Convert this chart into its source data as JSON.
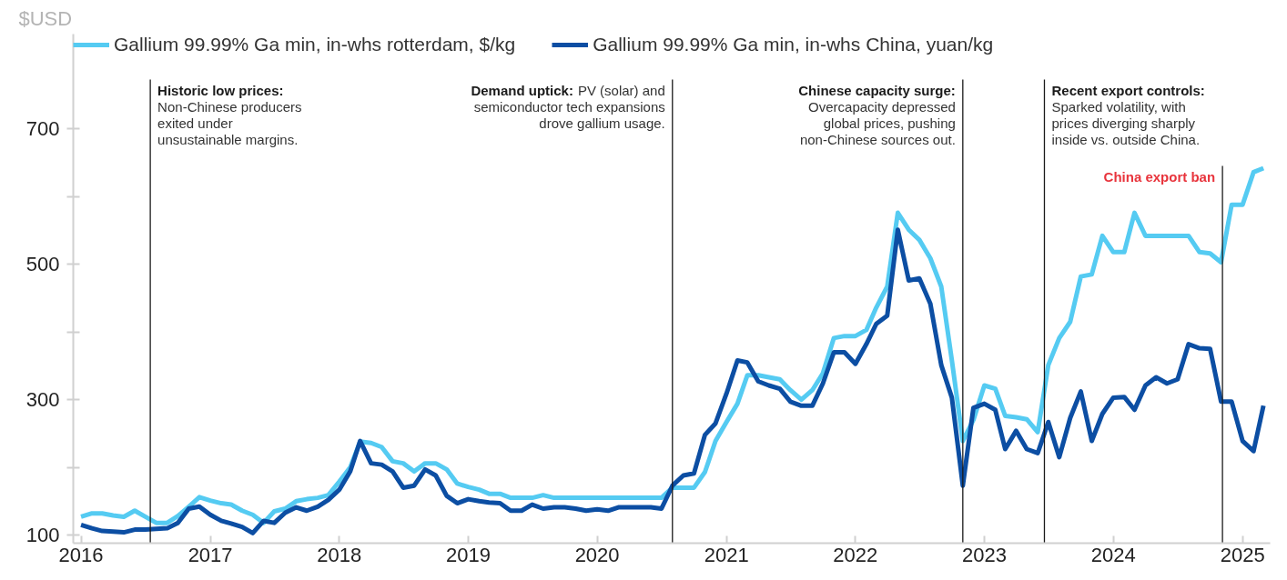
{
  "chart_data": {
    "type": "line",
    "ylabel": "$USD",
    "legend": "top",
    "line_style": "solid",
    "x": [
      "2016-01",
      "2016-02",
      "2016-03",
      "2016-04",
      "2016-05",
      "2016-06",
      "2016-07",
      "2016-08",
      "2016-09",
      "2016-10",
      "2016-11",
      "2016-12",
      "2017-01",
      "2017-02",
      "2017-03",
      "2017-04",
      "2017-05",
      "2017-06",
      "2017-07",
      "2017-08",
      "2017-09",
      "2017-10",
      "2017-11",
      "2017-12",
      "2018-01",
      "2018-02",
      "2018-03",
      "2018-04",
      "2018-05",
      "2018-06",
      "2018-07",
      "2018-08",
      "2018-09",
      "2018-10",
      "2018-11",
      "2018-12",
      "2019-01",
      "2019-02",
      "2019-03",
      "2019-04",
      "2019-05",
      "2019-06",
      "2019-07",
      "2019-08",
      "2019-09",
      "2019-10",
      "2019-11",
      "2019-12",
      "2020-01",
      "2020-02",
      "2020-03",
      "2020-04",
      "2020-05",
      "2020-06",
      "2020-07",
      "2020-08",
      "2020-09",
      "2020-10",
      "2020-11",
      "2020-12",
      "2021-01",
      "2021-02",
      "2021-03",
      "2021-04",
      "2021-05",
      "2021-06",
      "2021-07",
      "2021-08",
      "2021-09",
      "2021-10",
      "2021-11",
      "2021-12",
      "2022-01",
      "2022-02",
      "2022-03",
      "2022-04",
      "2022-05",
      "2022-06",
      "2022-07",
      "2022-08",
      "2022-09",
      "2022-10",
      "2022-11",
      "2022-12",
      "2023-01",
      "2023-02",
      "2023-03",
      "2023-04",
      "2023-05",
      "2023-06",
      "2023-07",
      "2023-08",
      "2023-09",
      "2023-10",
      "2023-11",
      "2023-12",
      "2024-01",
      "2024-02",
      "2024-03",
      "2024-04",
      "2024-05",
      "2024-06",
      "2024-07",
      "2024-08",
      "2024-09",
      "2024-10",
      "2024-11",
      "2024-12",
      "2025-01",
      "2025-02",
      "2025-03"
    ],
    "series": [
      {
        "name": "Gallium 99.99% Ga min, in-whs rotterdam, $/kg",
        "color": "#55cbf2",
        "values": [
          127,
          132,
          132,
          129,
          127,
          136,
          127,
          118,
          118,
          128,
          142,
          156,
          151,
          147,
          145,
          136,
          130,
          118,
          135,
          139,
          150,
          153,
          155,
          159,
          179,
          200,
          238,
          236,
          230,
          209,
          206,
          194,
          206,
          206,
          197,
          176,
          171,
          167,
          161,
          161,
          155,
          155,
          155,
          159,
          155,
          155,
          155,
          155,
          155,
          155,
          155,
          155,
          155,
          155,
          155,
          170,
          170,
          170,
          193,
          239,
          267,
          294,
          336,
          336,
          333,
          330,
          314,
          300,
          314,
          339,
          391,
          394,
          394,
          403,
          436,
          467,
          576,
          551,
          536,
          509,
          467,
          358,
          239,
          270,
          321,
          316,
          276,
          274,
          271,
          252,
          351,
          391,
          415,
          482,
          485,
          542,
          518,
          518,
          576,
          542,
          542,
          542,
          542,
          542,
          518,
          516,
          503,
          588,
          588,
          636,
          642
        ]
      },
      {
        "name": "Gallium 99.99% Ga min, in-whs China, yuan/kg",
        "color": "#0c4ea3",
        "values": [
          115,
          110,
          106,
          105,
          104,
          108,
          108,
          109,
          110,
          118,
          139,
          142,
          130,
          121,
          117,
          112,
          103,
          121,
          118,
          133,
          141,
          136,
          142,
          152,
          167,
          194,
          239,
          206,
          204,
          194,
          170,
          173,
          197,
          188,
          158,
          147,
          153,
          150,
          148,
          147,
          136,
          136,
          145,
          139,
          141,
          141,
          139,
          136,
          138,
          136,
          141,
          141,
          141,
          141,
          139,
          173,
          188,
          191,
          248,
          265,
          309,
          358,
          355,
          327,
          321,
          316,
          297,
          291,
          291,
          324,
          370,
          370,
          353,
          382,
          412,
          424,
          551,
          476,
          479,
          442,
          351,
          303,
          173,
          288,
          294,
          285,
          227,
          254,
          227,
          221,
          267,
          215,
          273,
          312,
          239,
          279,
          303,
          304,
          285,
          321,
          333,
          324,
          330,
          382,
          376,
          375,
          297,
          297,
          239,
          224,
          291
        ]
      }
    ],
    "xlim": [
      "2015-12-10",
      "2025-03-20"
    ],
    "xticks": [
      "2016",
      "2017",
      "2018",
      "2019",
      "2020",
      "2021",
      "2022",
      "2023",
      "2024",
      "2025"
    ],
    "ylim": [
      88,
      840
    ],
    "yticks": [
      100,
      {
        "value": 200,
        "label": null
      },
      300,
      {
        "value": 400,
        "label": null
      },
      500,
      {
        "value": 600,
        "label": null
      },
      700
    ],
    "ref_lines": [
      {
        "axis": "x",
        "value": "2016-07-15",
        "color": "#1a1a1a",
        "label": "Historic low prices:\nNon-Chinese producers\nexited under\nunsustainable margins."
      },
      {
        "axis": "x",
        "value": "2020-08-01",
        "color": "#1a1a1a",
        "label": "Demand uptick: PV (solar) and\nsemiconductor tech expansions\ndrove gallium usage."
      },
      {
        "axis": "x",
        "value": "2022-11-01",
        "color": "#1a1a1a",
        "label": "Chinese capacity surge:\nOvercapacity depressed\nglobal prices, pushing\nnon-Chinese sources out."
      },
      {
        "axis": "x",
        "value": "2023-06-20",
        "color": "#1a1a1a",
        "label": "Recent export controls:\nSparked volatility, with\nprices diverging sharply\ninside vs. outside China."
      },
      {
        "axis": "x",
        "value": "2024-11-05",
        "color": "#1a1a1a",
        "label": "China export ban"
      }
    ]
  }
}
